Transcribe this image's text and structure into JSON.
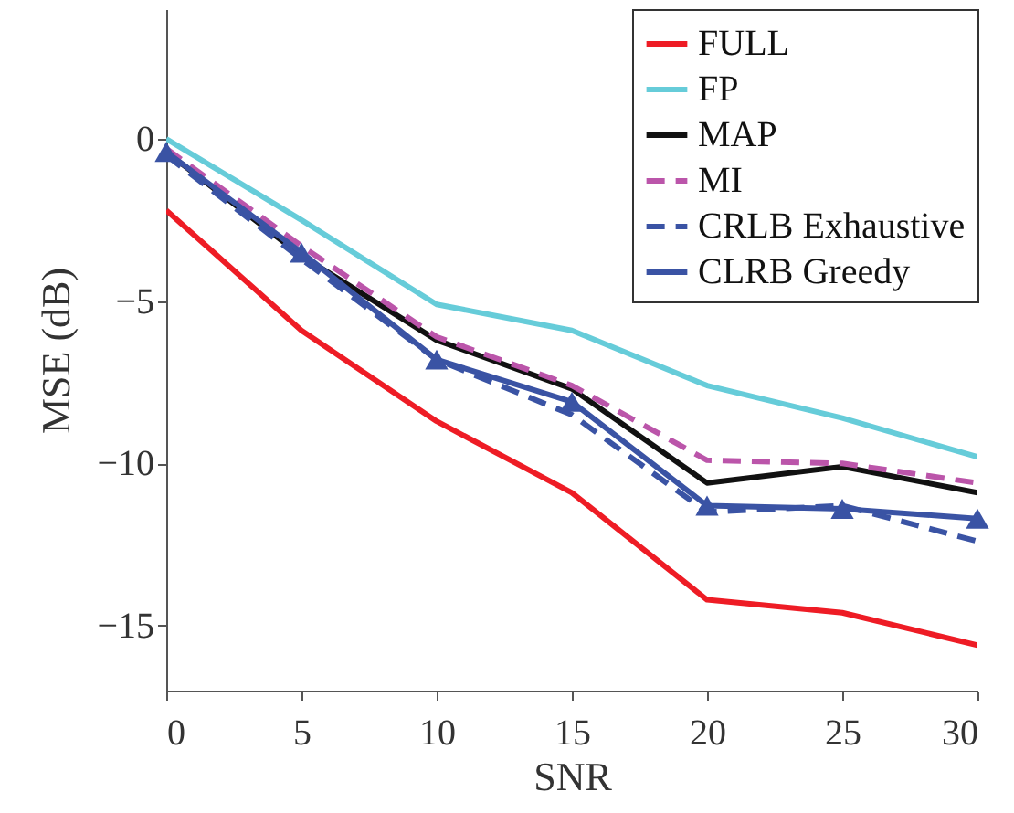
{
  "chart_data": {
    "type": "line",
    "xlabel": "SNR",
    "ylabel": "MSE (dB)",
    "x": [
      0,
      5,
      10,
      15,
      20,
      25,
      30
    ],
    "xlim": [
      0,
      30
    ],
    "xticks": [
      0,
      5,
      10,
      15,
      20,
      25,
      30
    ],
    "ylim": [
      -17,
      4
    ],
    "yticks": [
      -15,
      -10,
      -5,
      0
    ],
    "grid": false,
    "legend": "top right",
    "series": [
      {
        "name": "FULL",
        "color": "#ee1c25",
        "line_style": "solid",
        "marker": "none",
        "values": [
          -2.2,
          -5.9,
          -8.7,
          -10.9,
          -14.2,
          -14.6,
          -15.6
        ]
      },
      {
        "name": "FP",
        "color": "#66ccd9",
        "line_style": "solid",
        "marker": "none",
        "values": [
          0,
          -2.5,
          -5.1,
          -5.9,
          -7.6,
          -8.6,
          -9.8
        ]
      },
      {
        "name": "MAP",
        "color": "#111111",
        "line_style": "solid",
        "marker": "none",
        "values": [
          -0.4,
          -3.6,
          -6.2,
          -7.7,
          -10.6,
          -10.1,
          -10.9
        ]
      },
      {
        "name": "MI",
        "color": "#bb55aa",
        "line_style": "dashed",
        "marker": "none",
        "values": [
          -0.3,
          -3.3,
          -6.1,
          -7.6,
          -9.9,
          -10.0,
          -10.6
        ]
      },
      {
        "name": "CRLB Exhaustive",
        "color": "#3a53a4",
        "line_style": "dashed",
        "marker": "none",
        "values": [
          -0.5,
          -3.7,
          -6.8,
          -8.5,
          -11.5,
          -11.3,
          -12.4
        ]
      },
      {
        "name": "CLRB Greedy",
        "color": "#3a53a4",
        "line_style": "solid",
        "marker": "triangle",
        "values": [
          -0.4,
          -3.5,
          -6.8,
          -8.1,
          -11.3,
          -11.4,
          -11.7
        ]
      }
    ]
  }
}
